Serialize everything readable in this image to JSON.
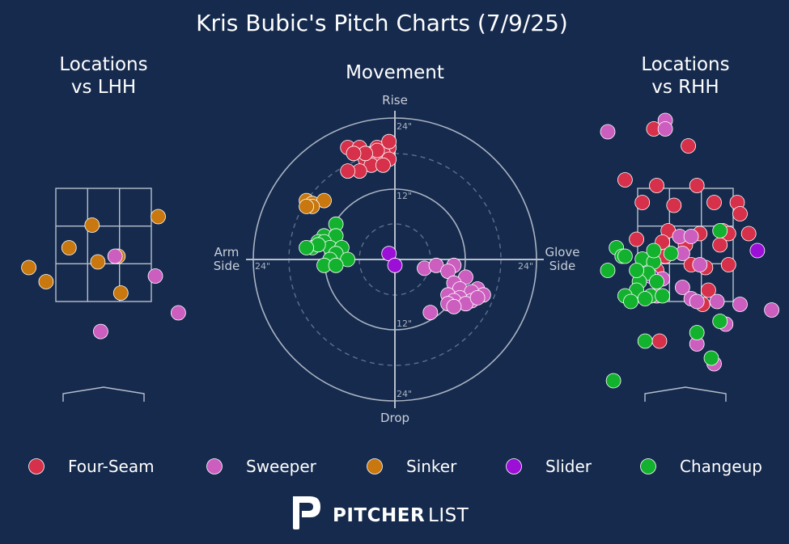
{
  "title": "Kris Bubic's Pitch Charts (7/9/25)",
  "panels": {
    "lhh_title_line1": "Locations",
    "lhh_title_line2": "vs LHH",
    "movement_title": "Movement",
    "rhh_title_line1": "Locations",
    "rhh_title_line2": "vs RHH"
  },
  "movement_axes": {
    "top": "Rise",
    "bottom": "Drop",
    "left_line1": "Arm",
    "left_line2": "Side",
    "right_line1": "Glove",
    "right_line2": "Side",
    "ring_12": "12\"",
    "ring_24": "24\""
  },
  "brand": {
    "bold": "PITCHER",
    "light": "LIST"
  },
  "colors": {
    "Four-Seam": "#d7304a",
    "Sweeper": "#cc5ec0",
    "Sinker": "#c8780e",
    "Slider": "#9b0fd6",
    "Changeup": "#13b22e"
  },
  "chart_data": [
    {
      "type": "scatter",
      "title": "Locations vs LHH",
      "units": "feet (catcher's view, horizontal from plate center, height above ground)",
      "strike_zone": {
        "x": [
          -0.83,
          0.83
        ],
        "z": [
          1.5,
          3.5
        ]
      },
      "series": [
        {
          "name": "Sinker",
          "points": [
            [
              -0.2,
              2.85
            ],
            [
              0.95,
              3.0
            ],
            [
              -0.6,
              2.45
            ],
            [
              -1.3,
              2.1
            ],
            [
              -0.1,
              2.2
            ],
            [
              0.25,
              2.3
            ],
            [
              -1.0,
              1.85
            ],
            [
              0.3,
              1.65
            ]
          ]
        },
        {
          "name": "Sweeper",
          "points": [
            [
              0.2,
              2.3
            ],
            [
              0.9,
              1.95
            ],
            [
              1.3,
              1.3
            ],
            [
              -0.05,
              0.97
            ]
          ]
        }
      ]
    },
    {
      "type": "scatter",
      "title": "Movement",
      "units": "inches of movement (x: negative = arm side, positive = glove side; y: positive = rise)",
      "rings": [
        12,
        24
      ],
      "series": [
        {
          "name": "Four-Seam",
          "points": [
            [
              -8,
              19
            ],
            [
              -6,
              19
            ],
            [
              -4,
              18
            ],
            [
              -3,
              19
            ],
            [
              -1,
              19
            ],
            [
              -2,
              18
            ],
            [
              -5,
              17
            ],
            [
              -3,
              17
            ],
            [
              -1,
              17
            ],
            [
              -4,
              16
            ],
            [
              -6,
              15
            ],
            [
              -8,
              15
            ],
            [
              -2,
              16
            ],
            [
              -3,
              18.5
            ],
            [
              -5,
              18
            ],
            [
              -7,
              18
            ],
            [
              -1,
              20
            ]
          ]
        },
        {
          "name": "Sinker",
          "points": [
            [
              -15,
              10
            ],
            [
              -14,
              9.5
            ],
            [
              -12,
              10
            ],
            [
              -14,
              9
            ],
            [
              -15,
              9
            ]
          ]
        },
        {
          "name": "Changeup",
          "points": [
            [
              -10,
              6
            ],
            [
              -12,
              4
            ],
            [
              -10,
              4
            ],
            [
              -13,
              3
            ],
            [
              -12,
              3
            ],
            [
              -14,
              2
            ],
            [
              -11,
              2
            ],
            [
              -9,
              2
            ],
            [
              -13,
              2.5
            ],
            [
              -10,
              1
            ],
            [
              -11,
              0
            ],
            [
              -8,
              0
            ],
            [
              -12,
              -1
            ],
            [
              -10,
              -1
            ],
            [
              -15,
              2
            ]
          ]
        },
        {
          "name": "Slider",
          "points": [
            [
              -1,
              1
            ],
            [
              0,
              -1
            ]
          ]
        },
        {
          "name": "Sweeper",
          "points": [
            [
              5,
              -1.5
            ],
            [
              7,
              -1
            ],
            [
              10,
              -1
            ],
            [
              9,
              -2
            ],
            [
              12,
              -3
            ],
            [
              10,
              -4
            ],
            [
              11,
              -5
            ],
            [
              14,
              -5
            ],
            [
              13,
              -5.5
            ],
            [
              9,
              -6
            ],
            [
              11,
              -6.5
            ],
            [
              13,
              -7
            ],
            [
              15,
              -6
            ],
            [
              10,
              -7
            ],
            [
              12,
              -7.5
            ],
            [
              14,
              -6.5
            ],
            [
              9,
              -7.5
            ],
            [
              6,
              -9
            ],
            [
              10,
              -8
            ]
          ]
        }
      ]
    },
    {
      "type": "scatter",
      "title": "Locations vs RHH",
      "units": "feet (catcher's view, horizontal from plate center, height above ground)",
      "strike_zone": {
        "x": [
          -0.83,
          0.83
        ],
        "z": [
          1.5,
          3.5
        ]
      },
      "series": [
        {
          "name": "Four-Seam",
          "points": [
            [
              -0.55,
              4.55
            ],
            [
              0.05,
              4.25
            ],
            [
              -1.05,
              3.65
            ],
            [
              -0.5,
              3.55
            ],
            [
              0.2,
              3.55
            ],
            [
              -0.75,
              3.25
            ],
            [
              -0.2,
              3.2
            ],
            [
              0.5,
              3.25
            ],
            [
              0.9,
              3.25
            ],
            [
              0.95,
              3.05
            ],
            [
              -0.3,
              2.75
            ],
            [
              0.25,
              2.7
            ],
            [
              0.65,
              2.75
            ],
            [
              0.75,
              2.7
            ],
            [
              1.1,
              2.7
            ],
            [
              -0.85,
              2.6
            ],
            [
              -0.4,
              2.55
            ],
            [
              0.0,
              2.5
            ],
            [
              0.6,
              2.5
            ],
            [
              -0.35,
              2.3
            ],
            [
              0.1,
              2.15
            ],
            [
              0.35,
              2.1
            ],
            [
              0.75,
              2.15
            ],
            [
              -0.5,
              2.05
            ],
            [
              -0.75,
              1.95
            ],
            [
              0.4,
              1.7
            ],
            [
              0.3,
              1.45
            ],
            [
              -0.45,
              0.8
            ]
          ]
        },
        {
          "name": "Sweeper",
          "points": [
            [
              -0.35,
              4.7
            ],
            [
              -0.35,
              4.55
            ],
            [
              -1.35,
              4.5
            ],
            [
              -0.1,
              2.65
            ],
            [
              0.1,
              2.65
            ],
            [
              -0.05,
              2.35
            ],
            [
              0.25,
              2.15
            ],
            [
              -0.4,
              1.9
            ],
            [
              -0.5,
              1.6
            ],
            [
              -0.05,
              1.75
            ],
            [
              0.1,
              1.55
            ],
            [
              0.2,
              1.5
            ],
            [
              0.55,
              1.5
            ],
            [
              0.95,
              1.45
            ],
            [
              1.5,
              1.35
            ],
            [
              0.7,
              1.1
            ],
            [
              0.2,
              0.75
            ],
            [
              0.5,
              0.4
            ]
          ]
        },
        {
          "name": "Slider",
          "points": [
            [
              -0.6,
              1.95
            ],
            [
              1.25,
              2.4
            ]
          ]
        },
        {
          "name": "Changeup",
          "points": [
            [
              -1.2,
              2.45
            ],
            [
              -1.1,
              2.3
            ],
            [
              -0.75,
              2.25
            ],
            [
              -0.55,
              2.2
            ],
            [
              -1.05,
              2.3
            ],
            [
              -0.65,
              2.0
            ],
            [
              -0.5,
              1.85
            ],
            [
              -0.8,
              1.85
            ],
            [
              -1.35,
              2.05
            ],
            [
              -0.85,
              1.7
            ],
            [
              -1.05,
              1.6
            ],
            [
              -0.95,
              1.5
            ],
            [
              -0.6,
              1.6
            ],
            [
              -0.4,
              1.6
            ],
            [
              0.6,
              2.75
            ],
            [
              0.6,
              1.15
            ],
            [
              0.2,
              0.95
            ],
            [
              -0.7,
              0.8
            ],
            [
              0.45,
              0.5
            ],
            [
              -1.25,
              0.1
            ],
            [
              -0.55,
              2.4
            ],
            [
              -0.25,
              2.35
            ],
            [
              -0.85,
              2.05
            ],
            [
              -0.7,
              1.55
            ]
          ]
        }
      ]
    }
  ],
  "legend": [
    "Four-Seam",
    "Sweeper",
    "Sinker",
    "Slider",
    "Changeup"
  ]
}
